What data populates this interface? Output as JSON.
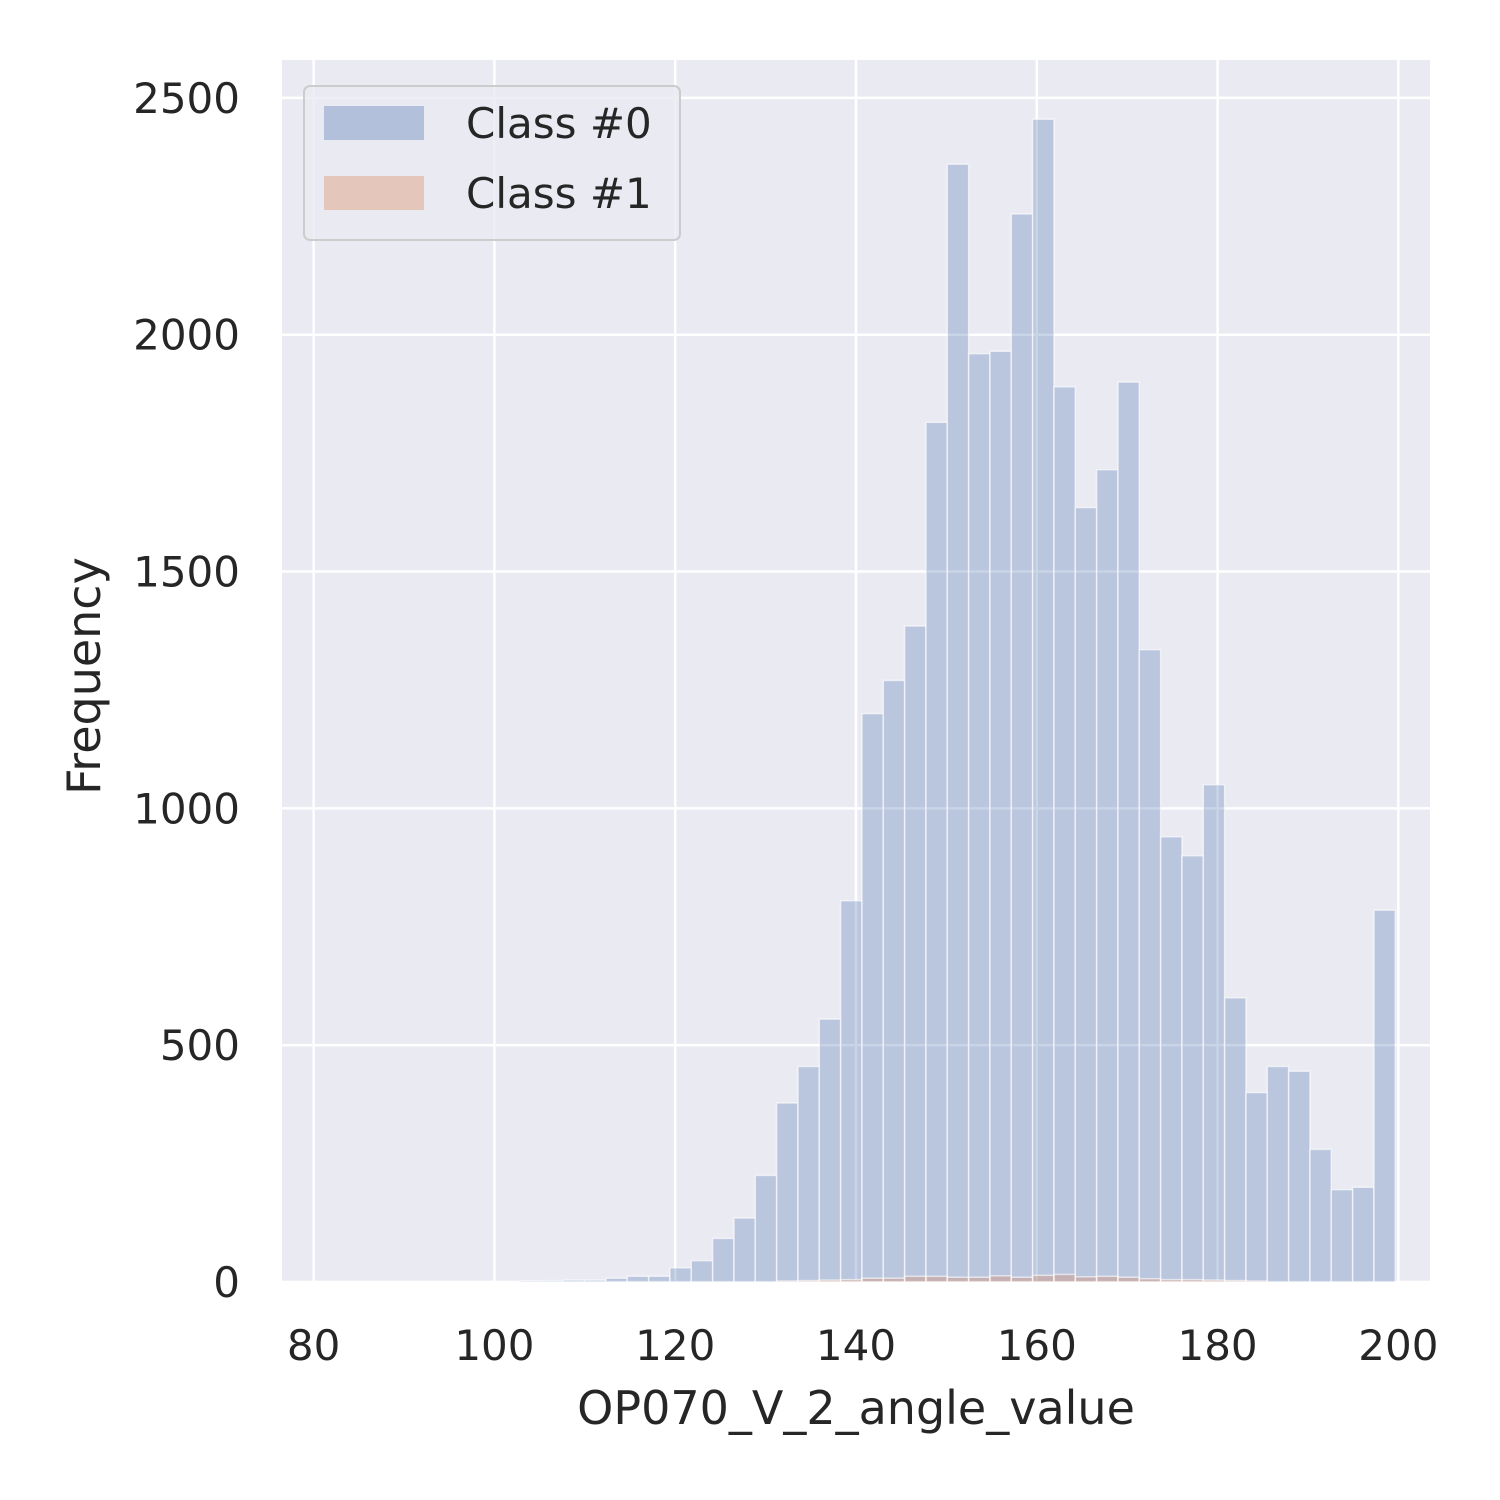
{
  "chart_data": {
    "type": "bar",
    "title": "",
    "xlabel": "OP070_V_2_angle_value",
    "ylabel": "Frequency",
    "xlim": [
      76.5,
      203.5
    ],
    "ylim": [
      0,
      2580
    ],
    "xticks": [
      80,
      100,
      120,
      140,
      160,
      180,
      200
    ],
    "yticks": [
      0,
      500,
      1000,
      1500,
      2000,
      2500
    ],
    "grid": true,
    "legend_position": "top-left",
    "bin_width": 2.36,
    "series": [
      {
        "name": "Class #0",
        "color": "#4c72b0",
        "opacity": 0.3,
        "bin_starts": [
          102.9,
          105.26,
          107.62,
          109.98,
          112.34,
          114.7,
          117.06,
          119.42,
          121.78,
          124.14,
          126.5,
          128.86,
          131.22,
          133.58,
          135.94,
          138.3,
          140.66,
          143.02,
          145.38,
          147.74,
          150.1,
          152.46,
          154.82,
          157.18,
          159.54,
          161.9,
          164.26,
          166.62,
          168.98,
          171.34,
          173.7,
          176.06,
          178.42,
          180.78,
          183.14,
          185.5,
          187.86,
          190.22,
          192.58,
          194.94,
          197.3
        ],
        "values": [
          2,
          3,
          4,
          4,
          8,
          12,
          12,
          30,
          45,
          92,
          135,
          225,
          378,
          455,
          555,
          805,
          1200,
          1270,
          1385,
          1815,
          2360,
          1960,
          1965,
          2255,
          2455,
          1890,
          1635,
          1715,
          1900,
          1335,
          940,
          900,
          1050,
          600,
          400,
          455,
          445,
          280,
          195,
          200,
          785
        ]
      },
      {
        "name": "Class #1",
        "color": "#dd8452",
        "opacity": 0.3,
        "bin_starts": [
          131.22,
          133.58,
          135.94,
          138.3,
          140.66,
          143.02,
          145.38,
          147.74,
          150.1,
          152.46,
          154.82,
          157.18,
          159.54,
          161.9,
          164.26,
          166.62,
          168.98,
          171.34,
          173.7,
          176.06,
          178.42,
          180.78,
          183.14
        ],
        "values": [
          2,
          3,
          4,
          5,
          8,
          8,
          12,
          12,
          10,
          10,
          13,
          10,
          14,
          16,
          11,
          12,
          10,
          7,
          5,
          5,
          4,
          3,
          2
        ]
      }
    ]
  }
}
